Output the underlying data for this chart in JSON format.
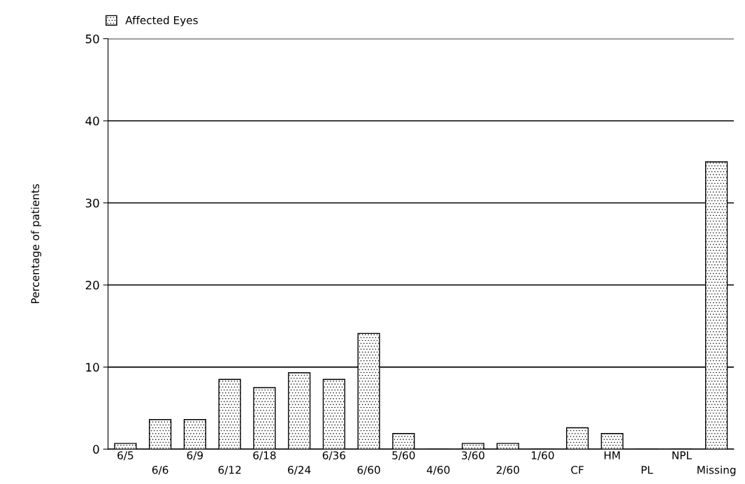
{
  "chart_data": {
    "type": "bar",
    "ylabel": "Percentage of patients",
    "categories": [
      "6/5",
      "6/6",
      "6/9",
      "6/12",
      "6/18",
      "6/24",
      "6/36",
      "6/60",
      "5/60",
      "4/60",
      "3/60",
      "2/60",
      "1/60",
      "CF",
      "HM",
      "PL",
      "NPL",
      "Missing"
    ],
    "series": [
      {
        "name": "Affected Eyes",
        "color": "#000000",
        "values": [
          0.7,
          3.6,
          3.6,
          8.5,
          7.5,
          9.3,
          8.5,
          14.1,
          1.9,
          0,
          0.7,
          0.7,
          0,
          2.6,
          1.9,
          0,
          0,
          35
        ]
      }
    ],
    "ylim": [
      0,
      50
    ],
    "yticks": [
      0,
      10,
      20,
      30,
      40,
      50
    ],
    "grid": "y",
    "legend": "top left"
  }
}
